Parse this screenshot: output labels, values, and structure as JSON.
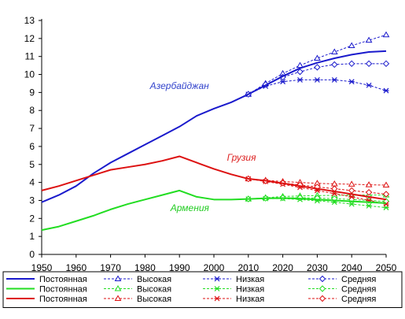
{
  "chart_data": {
    "type": "line",
    "title": "",
    "xlabel": "",
    "ylabel": "",
    "xlim": [
      1950,
      2050
    ],
    "ylim": [
      0,
      13
    ],
    "grid": false,
    "legend_placement": "bottom",
    "x_ticks": [
      1950,
      1960,
      1970,
      1980,
      1990,
      2000,
      2010,
      2020,
      2030,
      2040,
      2050
    ],
    "y_ticks": [
      0,
      1,
      2,
      3,
      4,
      5,
      6,
      7,
      8,
      9,
      10,
      11,
      12,
      13
    ],
    "annotations": [
      {
        "text": "Азербайджан",
        "color": "#3344cc",
        "x": 1990,
        "y": 9.2
      },
      {
        "text": "Грузия",
        "color": "#dd2222",
        "x": 2008,
        "y": 5.2
      },
      {
        "text": "Армения",
        "color": "#22cc22",
        "x": 1993,
        "y": 2.4
      }
    ],
    "countries": [
      {
        "key": "az",
        "color": "#1a1acc",
        "series": [
          {
            "variant": "constant",
            "name": "Постоянная",
            "x": [
              1950,
              1955,
              1960,
              1965,
              1970,
              1975,
              1980,
              1985,
              1990,
              1995,
              2000,
              2005,
              2010,
              2015,
              2020,
              2025,
              2030,
              2035,
              2040,
              2045,
              2050
            ],
            "y": [
              2.9,
              3.3,
              3.8,
              4.5,
              5.1,
              5.6,
              6.1,
              6.6,
              7.1,
              7.7,
              8.1,
              8.45,
              8.9,
              9.4,
              9.9,
              10.35,
              10.65,
              10.9,
              11.1,
              11.25,
              11.3
            ]
          },
          {
            "variant": "high",
            "name": "Высокая",
            "x": [
              2010,
              2015,
              2020,
              2025,
              2030,
              2035,
              2040,
              2045,
              2050
            ],
            "y": [
              8.9,
              9.5,
              10.05,
              10.5,
              10.9,
              11.25,
              11.6,
              11.9,
              12.2
            ]
          },
          {
            "variant": "low",
            "name": "Низкая",
            "x": [
              2010,
              2015,
              2020,
              2025,
              2030,
              2035,
              2040,
              2045,
              2050
            ],
            "y": [
              8.9,
              9.35,
              9.6,
              9.7,
              9.7,
              9.7,
              9.6,
              9.4,
              9.1
            ]
          },
          {
            "variant": "medium",
            "name": "Средняя",
            "x": [
              2010,
              2015,
              2020,
              2025,
              2030,
              2035,
              2040,
              2045,
              2050
            ],
            "y": [
              8.9,
              9.45,
              9.85,
              10.15,
              10.4,
              10.55,
              10.6,
              10.6,
              10.6
            ]
          }
        ]
      },
      {
        "key": "am",
        "color": "#22dd22",
        "series": [
          {
            "variant": "constant",
            "name": "Постоянная",
            "x": [
              1950,
              1955,
              1960,
              1965,
              1970,
              1975,
              1980,
              1985,
              1990,
              1995,
              2000,
              2005,
              2010,
              2015,
              2020,
              2025,
              2030,
              2035,
              2040,
              2045,
              2050
            ],
            "y": [
              1.35,
              1.55,
              1.85,
              2.15,
              2.5,
              2.8,
              3.05,
              3.3,
              3.55,
              3.2,
              3.05,
              3.05,
              3.08,
              3.12,
              3.13,
              3.1,
              3.05,
              3.0,
              2.95,
              2.9,
              2.85
            ]
          },
          {
            "variant": "high",
            "name": "Высокая",
            "x": [
              2010,
              2015,
              2020,
              2025,
              2030,
              2035,
              2040,
              2045,
              2050
            ],
            "y": [
              3.08,
              3.15,
              3.22,
              3.25,
              3.27,
              3.28,
              3.3,
              3.3,
              3.3
            ]
          },
          {
            "variant": "low",
            "name": "Низкая",
            "x": [
              2010,
              2015,
              2020,
              2025,
              2030,
              2035,
              2040,
              2045,
              2050
            ],
            "y": [
              3.08,
              3.1,
              3.1,
              3.05,
              2.98,
              2.9,
              2.8,
              2.7,
              2.6
            ]
          },
          {
            "variant": "medium",
            "name": "Средняя",
            "x": [
              2010,
              2015,
              2020,
              2025,
              2030,
              2035,
              2040,
              2045,
              2050
            ],
            "y": [
              3.08,
              3.12,
              3.15,
              3.15,
              3.13,
              3.1,
              3.05,
              3.0,
              2.95
            ]
          }
        ]
      },
      {
        "key": "ge",
        "color": "#dd1111",
        "series": [
          {
            "variant": "constant",
            "name": "Постоянная",
            "x": [
              1950,
              1955,
              1960,
              1965,
              1970,
              1975,
              1980,
              1985,
              1990,
              1995,
              2000,
              2005,
              2010,
              2015,
              2020,
              2025,
              2030,
              2035,
              2040,
              2045,
              2050
            ],
            "y": [
              3.55,
              3.8,
              4.1,
              4.4,
              4.7,
              4.85,
              5.0,
              5.2,
              5.45,
              5.1,
              4.75,
              4.45,
              4.2,
              4.1,
              3.95,
              3.8,
              3.65,
              3.5,
              3.35,
              3.2,
              3.05
            ]
          },
          {
            "variant": "high",
            "name": "Высокая",
            "x": [
              2010,
              2015,
              2020,
              2025,
              2030,
              2035,
              2040,
              2045,
              2050
            ],
            "y": [
              4.2,
              4.12,
              4.05,
              4.0,
              3.95,
              3.92,
              3.9,
              3.87,
              3.85
            ]
          },
          {
            "variant": "low",
            "name": "Низкая",
            "x": [
              2010,
              2015,
              2020,
              2025,
              2030,
              2035,
              2040,
              2045,
              2050
            ],
            "y": [
              4.2,
              4.05,
              3.9,
              3.72,
              3.55,
              3.38,
              3.2,
              3.0,
              2.8
            ]
          },
          {
            "variant": "medium",
            "name": "Средняя",
            "x": [
              2010,
              2015,
              2020,
              2025,
              2030,
              2035,
              2040,
              2045,
              2050
            ],
            "y": [
              4.2,
              4.08,
              3.97,
              3.86,
              3.75,
              3.65,
              3.55,
              3.45,
              3.35
            ]
          }
        ]
      }
    ]
  }
}
